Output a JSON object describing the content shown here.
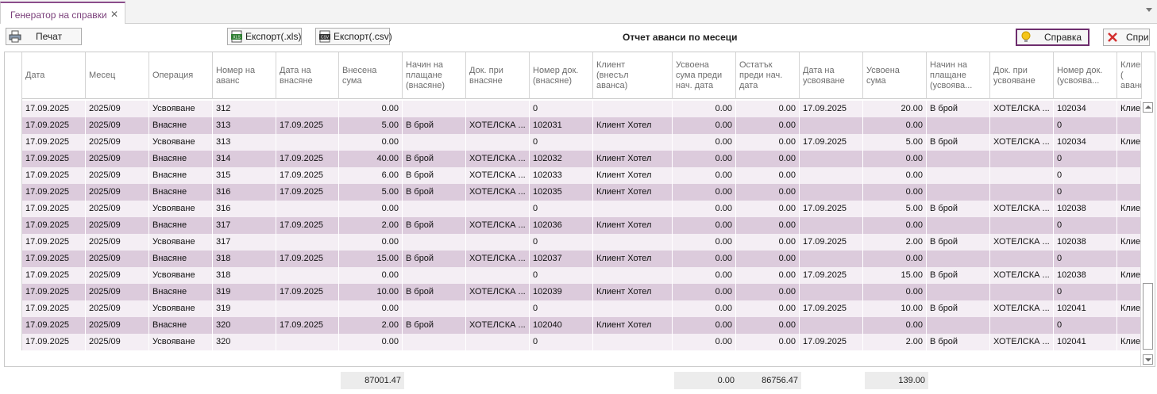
{
  "tab": {
    "title": "Генератор на справки",
    "close": "✕"
  },
  "toolbar": {
    "print_label": "Печат",
    "export_xls_label": "Експорт(.xls)",
    "export_csv_label": "Експорт(.csv)",
    "report_title": "Отчет аванси по месеци",
    "help_label": "Справка",
    "stop_label": "Спри"
  },
  "grid": {
    "columns": [
      "Дата",
      "Месец",
      "Операция",
      "Номер на\nаванс",
      "Дата на\nвнасяне",
      "Внесена\nсума",
      "Начин на\nплащане\n(внасяне)",
      "Док. при\nвнасяне",
      "Номер док.\n(внасяне)",
      "Клиент\n(внесъл\nаванса)",
      "Усвоена\nсума преди\nнач. дата",
      "Остатък\nпреди нач.\nдата",
      "Дата на\nусвояване",
      "Усвоена\nсума",
      "Начин на\nплащане\n(усвоява...",
      "Док. при\nусвояване",
      "Номер док.\n(усвоява...",
      "Клиент (\nаванса)"
    ],
    "rows": [
      [
        "17.09.2025",
        "2025/09",
        "Усвояване",
        "312",
        "",
        "0.00",
        "",
        "",
        "0",
        "",
        "0.00",
        "0.00",
        "17.09.2025",
        "20.00",
        "В брой",
        "ХОТЕЛСКА ...",
        "102034",
        "Клие"
      ],
      [
        "17.09.2025",
        "2025/09",
        "Внасяне",
        "313",
        "17.09.2025",
        "5.00",
        "В брой",
        "ХОТЕЛСКА ...",
        "102031",
        "Клиент Хотел",
        "0.00",
        "0.00",
        "",
        "0.00",
        "",
        "",
        "0",
        ""
      ],
      [
        "17.09.2025",
        "2025/09",
        "Усвояване",
        "313",
        "",
        "0.00",
        "",
        "",
        "0",
        "",
        "0.00",
        "0.00",
        "17.09.2025",
        "5.00",
        "В брой",
        "ХОТЕЛСКА ...",
        "102034",
        "Клие"
      ],
      [
        "17.09.2025",
        "2025/09",
        "Внасяне",
        "314",
        "17.09.2025",
        "40.00",
        "В брой",
        "ХОТЕЛСКА ...",
        "102032",
        "Клиент Хотел",
        "0.00",
        "0.00",
        "",
        "0.00",
        "",
        "",
        "0",
        ""
      ],
      [
        "17.09.2025",
        "2025/09",
        "Внасяне",
        "315",
        "17.09.2025",
        "6.00",
        "В брой",
        "ХОТЕЛСКА ...",
        "102033",
        "Клиент Хотел",
        "0.00",
        "0.00",
        "",
        "0.00",
        "",
        "",
        "0",
        ""
      ],
      [
        "17.09.2025",
        "2025/09",
        "Внасяне",
        "316",
        "17.09.2025",
        "5.00",
        "В брой",
        "ХОТЕЛСКА ...",
        "102035",
        "Клиент Хотел",
        "0.00",
        "0.00",
        "",
        "0.00",
        "",
        "",
        "0",
        ""
      ],
      [
        "17.09.2025",
        "2025/09",
        "Усвояване",
        "316",
        "",
        "0.00",
        "",
        "",
        "0",
        "",
        "0.00",
        "0.00",
        "17.09.2025",
        "5.00",
        "В брой",
        "ХОТЕЛСКА ...",
        "102038",
        "Клие"
      ],
      [
        "17.09.2025",
        "2025/09",
        "Внасяне",
        "317",
        "17.09.2025",
        "2.00",
        "В брой",
        "ХОТЕЛСКА ...",
        "102036",
        "Клиент Хотел",
        "0.00",
        "0.00",
        "",
        "0.00",
        "",
        "",
        "0",
        ""
      ],
      [
        "17.09.2025",
        "2025/09",
        "Усвояване",
        "317",
        "",
        "0.00",
        "",
        "",
        "0",
        "",
        "0.00",
        "0.00",
        "17.09.2025",
        "2.00",
        "В брой",
        "ХОТЕЛСКА ...",
        "102038",
        "Клие"
      ],
      [
        "17.09.2025",
        "2025/09",
        "Внасяне",
        "318",
        "17.09.2025",
        "15.00",
        "В брой",
        "ХОТЕЛСКА ...",
        "102037",
        "Клиент Хотел",
        "0.00",
        "0.00",
        "",
        "0.00",
        "",
        "",
        "0",
        ""
      ],
      [
        "17.09.2025",
        "2025/09",
        "Усвояване",
        "318",
        "",
        "0.00",
        "",
        "",
        "0",
        "",
        "0.00",
        "0.00",
        "17.09.2025",
        "15.00",
        "В брой",
        "ХОТЕЛСКА ...",
        "102038",
        "Клие"
      ],
      [
        "17.09.2025",
        "2025/09",
        "Внасяне",
        "319",
        "17.09.2025",
        "10.00",
        "В брой",
        "ХОТЕЛСКА ...",
        "102039",
        "Клиент Хотел",
        "0.00",
        "0.00",
        "",
        "0.00",
        "",
        "",
        "0",
        ""
      ],
      [
        "17.09.2025",
        "2025/09",
        "Усвояване",
        "319",
        "",
        "0.00",
        "",
        "",
        "0",
        "",
        "0.00",
        "0.00",
        "17.09.2025",
        "10.00",
        "В брой",
        "ХОТЕЛСКА ...",
        "102041",
        "Клие"
      ],
      [
        "17.09.2025",
        "2025/09",
        "Внасяне",
        "320",
        "17.09.2025",
        "2.00",
        "В брой",
        "ХОТЕЛСКА ...",
        "102040",
        "Клиент Хотел",
        "0.00",
        "0.00",
        "",
        "0.00",
        "",
        "",
        "0",
        ""
      ],
      [
        "17.09.2025",
        "2025/09",
        "Усвояване",
        "320",
        "",
        "0.00",
        "",
        "",
        "0",
        "",
        "0.00",
        "0.00",
        "17.09.2025",
        "2.00",
        "В брой",
        "ХОТЕЛСКА ...",
        "102041",
        "Клие"
      ]
    ]
  },
  "footer": {
    "total_deposited": "87001.47",
    "total_used_before": "0.00",
    "total_balance_before": "86756.47",
    "total_used": "139.00"
  },
  "colors": {
    "accent": "#8b4d8b",
    "row_odd": "#f4eef4",
    "row_even": "#dccbdc"
  },
  "icons": {
    "print": "printer-icon",
    "xls": "xls-file-icon",
    "csv": "csv-file-icon",
    "help": "lightbulb-icon",
    "stop": "close-x-icon"
  }
}
